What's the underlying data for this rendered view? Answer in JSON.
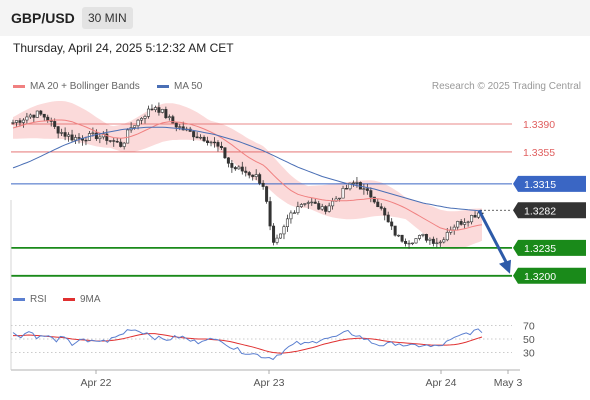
{
  "header": {
    "pair": "GBP/USD",
    "timeframe": "30 MIN",
    "datetime": "Thursday, April 24, 2025 5:12:32 AM CET"
  },
  "legend": {
    "ma20_label": "MA 20 + Bollinger Bands",
    "ma50_label": "MA 50",
    "credit": "Research © 2025 Trading Central",
    "rsi_label": "RSI",
    "rsi_ma_label": "9MA"
  },
  "colors": {
    "ma20": "#f08080",
    "band_fill": "#fbdada",
    "ma50": "#4a6fb5",
    "resistance": "#e06060",
    "pivot": "#3a66c4",
    "support": "#1a8a1a",
    "current": "#333333",
    "arrow": "#2d5aa8",
    "rsi": "#5b7fd0",
    "rsi_ma": "#e03030"
  },
  "chart_data": [
    {
      "type": "candlestick",
      "title": "GBP/USD 30 MIN",
      "y_axis_ticks": [
        1.339,
        1.3355,
        1.3315,
        1.3282,
        1.3235,
        1.32
      ],
      "ylim": [
        1.3186,
        1.3425
      ],
      "x_ticks": [
        "Apr 22",
        "Apr 23",
        "Apr 24",
        "May 3"
      ],
      "levels": [
        {
          "value": 1.339,
          "label": "1.3390",
          "kind": "resistance"
        },
        {
          "value": 1.3355,
          "label": "1.3355",
          "kind": "resistance"
        },
        {
          "value": 1.3315,
          "label": "1.3315",
          "kind": "pivot"
        },
        {
          "value": 1.3282,
          "label": "1.3282",
          "kind": "current"
        },
        {
          "value": 1.3235,
          "label": "1.3235",
          "kind": "support"
        },
        {
          "value": 1.32,
          "label": "1.3200",
          "kind": "support"
        }
      ],
      "forecast_arrow": {
        "from": 1.3282,
        "to": 1.32
      },
      "close_path": [
        1.3392,
        1.3396,
        1.3401,
        1.3403,
        1.3398,
        1.3385,
        1.3378,
        1.3373,
        1.3372,
        1.3374,
        1.3375,
        1.3373,
        1.3368,
        1.3363,
        1.3385,
        1.3395,
        1.3405,
        1.3412,
        1.3403,
        1.3392,
        1.3385,
        1.338,
        1.3375,
        1.3372,
        1.3366,
        1.3355,
        1.3336,
        1.3333,
        1.3329,
        1.3325,
        1.3312,
        1.3236,
        1.325,
        1.3276,
        1.3288,
        1.3294,
        1.3289,
        1.3282,
        1.3291,
        1.3301,
        1.3311,
        1.3318,
        1.3305,
        1.3299,
        1.3282,
        1.3262,
        1.3248,
        1.3244,
        1.3246,
        1.3249,
        1.3245,
        1.3242,
        1.3258,
        1.3265,
        1.327,
        1.3276,
        1.3282
      ],
      "ma20_path": [
        1.3385,
        1.3388,
        1.3391,
        1.3393,
        1.3394,
        1.3395,
        1.3395,
        1.3393,
        1.3389,
        1.3385,
        1.338,
        1.3376,
        1.3373,
        1.3372,
        1.3374,
        1.3378,
        1.3383,
        1.3388,
        1.3392,
        1.3393,
        1.3392,
        1.339,
        1.3387,
        1.3383,
        1.3378,
        1.3372,
        1.3365,
        1.3357,
        1.3349,
        1.3343,
        1.3338,
        1.3327,
        1.3317,
        1.3308,
        1.3302,
        1.3299,
        1.3297,
        1.3295,
        1.3294,
        1.3294,
        1.3294,
        1.3295,
        1.3296,
        1.3297,
        1.3296,
        1.3293,
        1.3289,
        1.3284,
        1.3278,
        1.3272,
        1.3266,
        1.326,
        1.3257,
        1.3257,
        1.3259,
        1.3262,
        1.3264
      ],
      "band_width": 0.0017,
      "ma50_path": [
        1.3335,
        1.3339,
        1.3343,
        1.3348,
        1.3353,
        1.3358,
        1.3363,
        1.3367,
        1.3371,
        1.3374,
        1.3377,
        1.3379,
        1.3381,
        1.3383,
        1.3384,
        1.3385,
        1.3386,
        1.3386,
        1.3386,
        1.3385,
        1.3384,
        1.3383,
        1.3381,
        1.3379,
        1.3377,
        1.3374,
        1.3371,
        1.3368,
        1.3364,
        1.336,
        1.3356,
        1.3351,
        1.3346,
        1.3341,
        1.3336,
        1.3332,
        1.3328,
        1.3324,
        1.3321,
        1.3318,
        1.3315,
        1.3313,
        1.3311,
        1.3309,
        1.3306,
        1.3303,
        1.33,
        1.3297,
        1.3294,
        1.3291,
        1.3289,
        1.3287,
        1.3285,
        1.3284,
        1.3283,
        1.3282,
        1.3281
      ]
    },
    {
      "type": "line",
      "title": "RSI",
      "y_axis_ticks": [
        70,
        50,
        30
      ],
      "ylim": [
        10,
        90
      ],
      "series": [
        {
          "name": "RSI",
          "values": [
            58,
            55,
            62,
            52,
            55,
            48,
            52,
            42,
            50,
            44,
            48,
            46,
            51,
            57,
            66,
            62,
            59,
            52,
            49,
            51,
            54,
            48,
            45,
            52,
            47,
            49,
            38,
            33,
            30,
            27,
            24,
            22,
            30,
            38,
            44,
            42,
            46,
            52,
            51,
            55,
            60,
            56,
            50,
            44,
            41,
            42,
            45,
            38,
            40,
            41,
            38,
            40,
            46,
            52,
            58,
            61,
            62
          ]
        },
        {
          "name": "9MA",
          "values": [
            55,
            55,
            56,
            55,
            54,
            53,
            52,
            50,
            49,
            48,
            47,
            47,
            48,
            50,
            53,
            56,
            58,
            58,
            56,
            54,
            52,
            51,
            50,
            50,
            49,
            48,
            46,
            43,
            40,
            37,
            33,
            30,
            29,
            30,
            32,
            35,
            38,
            42,
            45,
            48,
            50,
            51,
            51,
            50,
            48,
            46,
            45,
            44,
            43,
            42,
            41,
            41,
            41,
            42,
            45,
            49,
            53
          ]
        }
      ]
    }
  ]
}
